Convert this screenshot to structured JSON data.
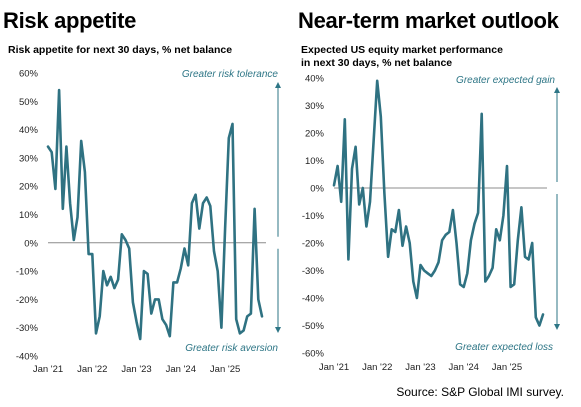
{
  "source": "Source: S&P Global IMI survey.",
  "colors": {
    "series": "#2f7282",
    "annotation": "#2e7686",
    "zero_line": "#8c8c8c"
  },
  "chart_data": [
    {
      "type": "line",
      "title": "Risk appetite",
      "subtitle": "Risk appetite for next 30 days, % net balance",
      "ylim": [
        -40,
        60
      ],
      "yticks": [
        -40,
        -30,
        -20,
        -10,
        0,
        10,
        20,
        30,
        40,
        50,
        60
      ],
      "ytick_labels": [
        "-40%",
        "-30%",
        "-20%",
        "-10%",
        "0%",
        "10%",
        "20%",
        "30%",
        "40%",
        "50%",
        "60%"
      ],
      "xlim": [
        0,
        58
      ],
      "xticks": [
        0,
        12,
        24,
        36,
        48
      ],
      "xtick_labels": [
        "Jan '21",
        "Jan '22",
        "Jan '23",
        "Jan '24",
        "Jan '25"
      ],
      "grid": false,
      "annotations": {
        "top": "Greater risk tolerance",
        "bottom": "Greater risk aversion"
      },
      "series": [
        {
          "x": [
            0,
            1,
            2,
            3,
            4,
            5,
            6,
            7,
            8,
            9,
            10,
            11,
            12,
            13,
            14,
            15,
            16,
            17,
            18,
            19,
            20,
            21,
            22,
            23,
            24,
            25,
            26,
            27,
            28,
            29,
            30,
            31,
            32,
            33,
            34,
            35,
            36,
            37,
            38,
            39,
            40,
            41,
            42,
            43,
            44,
            45,
            46,
            47,
            48,
            49,
            50,
            51,
            52,
            53,
            54,
            55,
            56,
            57,
            58
          ],
          "values": [
            34,
            32,
            19,
            54,
            12,
            34,
            14,
            1,
            9,
            36,
            25,
            -4,
            -4,
            -32,
            -26,
            -10,
            -15,
            -12,
            -16,
            -13,
            3,
            1,
            -2,
            -21,
            -28,
            -34,
            -10,
            -11,
            -25,
            -20,
            -20,
            -27,
            -29,
            -33,
            -14,
            -14,
            -9,
            -2,
            -8,
            14,
            17,
            5,
            14,
            16,
            13,
            -3,
            -10,
            -30,
            5,
            37,
            42,
            -27,
            -32,
            -31,
            -26,
            -25,
            12,
            -20,
            -26
          ]
        }
      ]
    },
    {
      "type": "line",
      "title": "Near-term market outlook",
      "subtitle": "Expected US equity market performance\nin next 30 days, % net balance",
      "ylim": [
        -60,
        40
      ],
      "yticks": [
        -60,
        -50,
        -40,
        -30,
        -20,
        -10,
        0,
        10,
        20,
        30,
        40
      ],
      "ytick_labels": [
        "-60%",
        "-50%",
        "-40%",
        "-30%",
        "-20%",
        "-10%",
        "0%",
        "10%",
        "20%",
        "30%",
        "40%"
      ],
      "xlim": [
        0,
        58
      ],
      "xticks": [
        0,
        12,
        24,
        36,
        48
      ],
      "xtick_labels": [
        "Jan '21",
        "Jan '22",
        "Jan '23",
        "Jan '24",
        "Jan '25"
      ],
      "grid": false,
      "annotations": {
        "top": "Greater expected gain",
        "bottom": "Greater expected loss"
      },
      "series": [
        {
          "x": [
            0,
            1,
            2,
            3,
            4,
            5,
            6,
            7,
            8,
            9,
            10,
            11,
            12,
            13,
            14,
            15,
            16,
            17,
            18,
            19,
            20,
            21,
            22,
            23,
            24,
            25,
            26,
            27,
            28,
            29,
            30,
            31,
            32,
            33,
            34,
            35,
            36,
            37,
            38,
            39,
            40,
            41,
            42,
            43,
            44,
            45,
            46,
            47,
            48,
            49,
            50,
            51,
            52,
            53,
            54,
            55,
            56,
            57,
            58
          ],
          "values": [
            1,
            8,
            -5,
            25,
            -26,
            7,
            15,
            -6,
            0,
            -14,
            -5,
            17,
            39,
            26,
            -2,
            -25,
            -15,
            -16,
            -8,
            -21,
            -14,
            -20,
            -34,
            -40,
            -28,
            -30,
            -31,
            -32,
            -30,
            -27,
            -19,
            -17,
            -16,
            -8,
            -20,
            -35,
            -36,
            -31,
            -19,
            -13,
            -9,
            27,
            -34,
            -32,
            -29,
            -15,
            -19,
            -10,
            8,
            -36,
            -35,
            -19,
            -7,
            -25,
            -26,
            -20,
            -47,
            -50,
            -46
          ]
        }
      ]
    }
  ]
}
